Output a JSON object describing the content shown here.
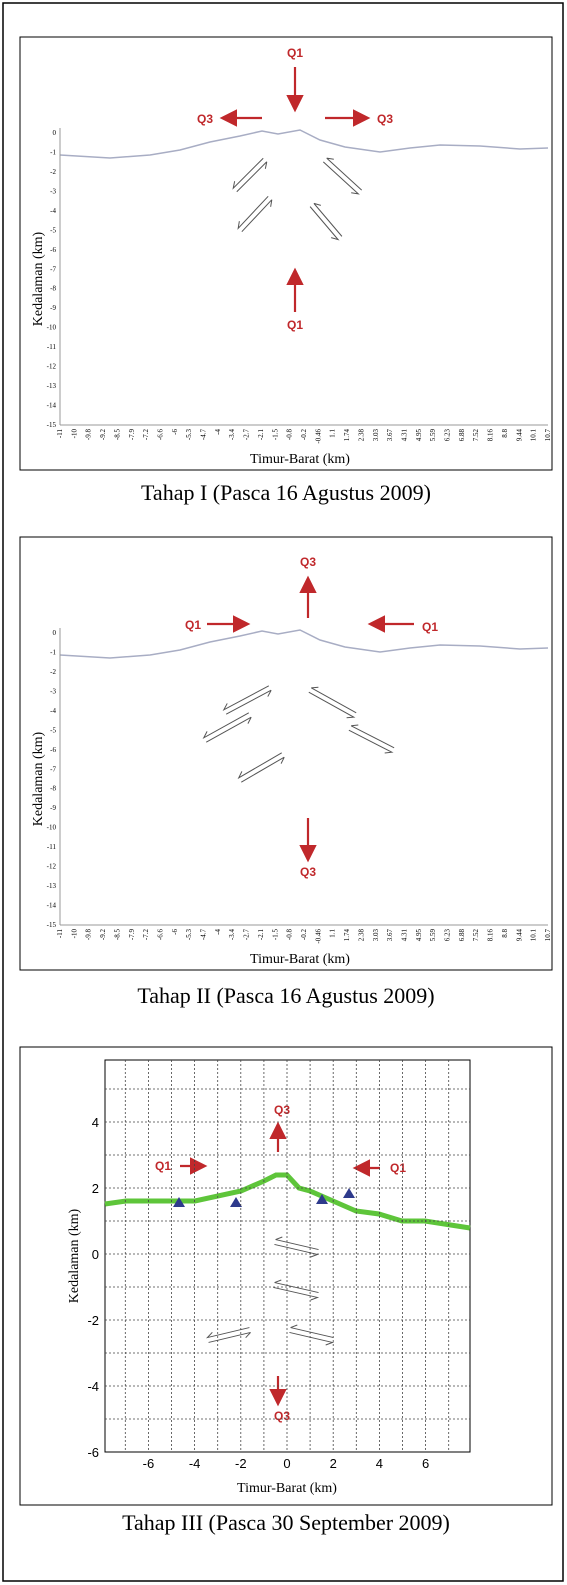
{
  "panels": [
    {
      "y_axis_label": "Kedalaman (km)",
      "x_axis_label": "Timur-Barat (km)",
      "y_tick_labels": [
        "0",
        "-1",
        "-2",
        "-3",
        "-4",
        "-5",
        "-6",
        "-7",
        "-8",
        "-9",
        "-10",
        "-11",
        "-12",
        "-13",
        "-14",
        "-15"
      ],
      "x_tick_labels": [
        "-11",
        "-10",
        "-9.8",
        "-9.2",
        "-8.5",
        "-7.9",
        "-7.2",
        "-6.6",
        "-6",
        "-5.3",
        "-4.7",
        "-4",
        "-3.4",
        "-2.7",
        "-2.1",
        "-1.5",
        "-0.8",
        "-0.2",
        "-0.46",
        "1.1",
        "1.74",
        "2.38",
        "3.03",
        "3.67",
        "4.31",
        "4.95",
        "5.59",
        "6.23",
        "6.88",
        "7.52",
        "8.16",
        "8.8",
        "9.44",
        "10.1",
        "10.7"
      ],
      "annotations": [
        "Q1",
        "Q3",
        "Q3",
        "Q1"
      ],
      "caption": "Tahap I (Pasca 16 Agustus 2009)"
    },
    {
      "y_axis_label": "Kedalaman (km)",
      "x_axis_label": "Timur-Barat (km)",
      "y_tick_labels": [
        "0",
        "-1",
        "-2",
        "-3",
        "-4",
        "-5",
        "-6",
        "-7",
        "-8",
        "-9",
        "-10",
        "-11",
        "-12",
        "-13",
        "-14",
        "-15"
      ],
      "x_tick_labels": [
        "-11",
        "-10",
        "-9.8",
        "-9.2",
        "-8.5",
        "-7.9",
        "-7.2",
        "-6.6",
        "-6",
        "-5.3",
        "-4.7",
        "-4",
        "-3.4",
        "-2.7",
        "-2.1",
        "-1.5",
        "-0.8",
        "-0.2",
        "-0.46",
        "1.1",
        "1.74",
        "2.38",
        "3.03",
        "3.67",
        "4.31",
        "4.95",
        "5.59",
        "6.23",
        "6.88",
        "7.52",
        "8.16",
        "8.8",
        "9.44",
        "10.1",
        "10.7"
      ],
      "annotations": [
        "Q3",
        "Q1",
        "Q1",
        "Q3"
      ],
      "caption": "Tahap II (Pasca 16 Agustus 2009)"
    },
    {
      "y_axis_label": "Kedalaman (km)",
      "x_axis_label": "Timur-Barat (km)",
      "y_tick_labels": [
        "4",
        "2",
        "0",
        "-2",
        "-4",
        "-6"
      ],
      "x_tick_labels": [
        "-6",
        "-4",
        "-2",
        "0",
        "2",
        "4",
        "6"
      ],
      "annotations": [
        "Q3",
        "Q1",
        "Q1",
        "Q3"
      ],
      "caption": "Tahap III (Pasca 30 September 2009)"
    }
  ]
}
